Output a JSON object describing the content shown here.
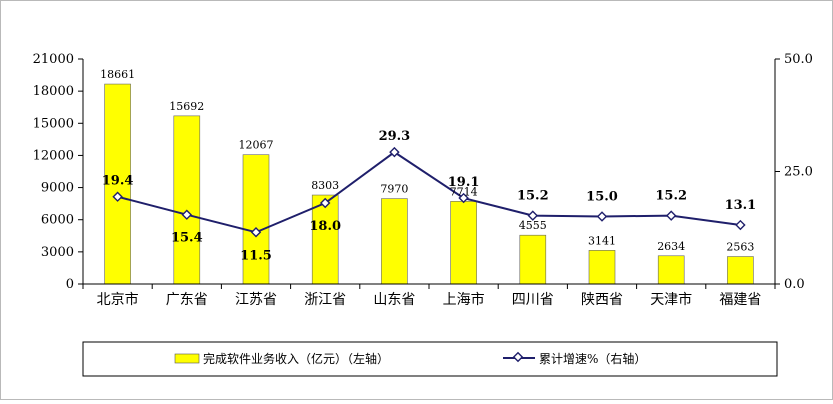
{
  "chart_data": {
    "type": "bar",
    "categories": [
      "北京市",
      "广东省",
      "江苏省",
      "浙江省",
      "山东省",
      "上海市",
      "四川省",
      "陕西省",
      "天津市",
      "福建省"
    ],
    "series": [
      {
        "name": "完成软件业务收入（亿元）（左轴）",
        "type": "bar",
        "axis": "left",
        "color": "#FFFF00",
        "values": [
          18661,
          15692,
          12067,
          8303,
          7970,
          7714,
          4555,
          3141,
          2634,
          2563
        ],
        "labels": [
          "18661",
          "15692",
          "12067",
          "8303",
          "7970",
          "7714",
          "4555",
          "3141",
          "2634",
          "2563"
        ]
      },
      {
        "name": "累计增速%（右轴）",
        "type": "line",
        "axis": "right",
        "color": "#1F1F6B",
        "values": [
          19.4,
          15.4,
          11.5,
          18.0,
          29.3,
          19.1,
          15.2,
          15.0,
          15.2,
          13.1
        ],
        "labels": [
          "19.4",
          "15.4",
          "11.5",
          "18.0",
          "29.3",
          "19.1",
          "15.2",
          "15.0",
          "15.2",
          "13.1"
        ]
      }
    ],
    "y_left": {
      "range": [
        0,
        21000
      ],
      "ticks": [
        0,
        3000,
        6000,
        9000,
        12000,
        15000,
        18000,
        21000
      ],
      "tick_labels": [
        "0",
        "3000",
        "6000",
        "9000",
        "12000",
        "15000",
        "18000",
        "21000"
      ]
    },
    "y_right": {
      "range": [
        0,
        50
      ],
      "ticks": [
        0,
        25,
        50
      ],
      "tick_labels": [
        "0.0",
        "25.0",
        "50.0"
      ]
    },
    "grid": false,
    "legend_position": "bottom"
  }
}
